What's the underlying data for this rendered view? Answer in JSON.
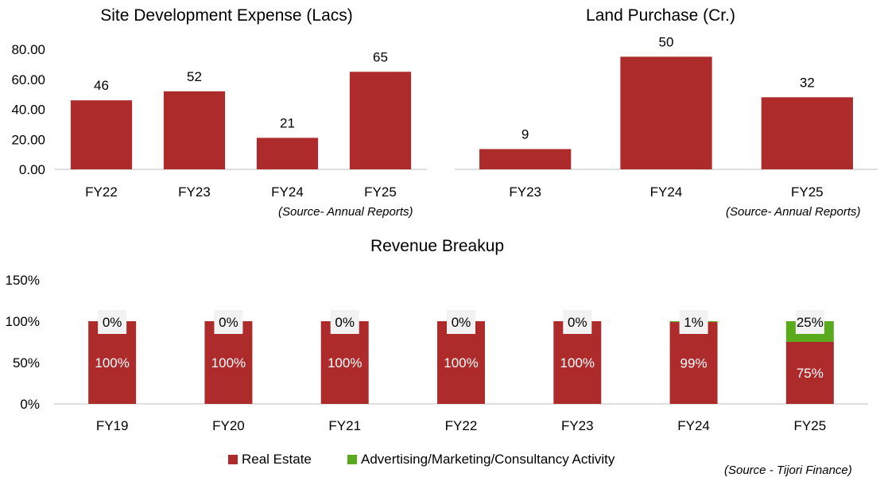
{
  "chart_data": [
    {
      "type": "bar",
      "title": "Site Development Expense (Lacs)",
      "categories": [
        "FY22",
        "FY23",
        "FY24",
        "FY25"
      ],
      "values": [
        46,
        52,
        21,
        65
      ],
      "data_labels": [
        "46",
        "52",
        "21",
        "65"
      ],
      "ylim": [
        0,
        80
      ],
      "yticks": [
        0,
        20,
        40,
        60,
        80
      ],
      "ytick_labels": [
        "0.00",
        "20.00",
        "40.00",
        "60.00",
        "80.00"
      ],
      "source": "(Source-  Annual Reports)",
      "color": "#ad2b2b",
      "grid": false
    },
    {
      "type": "bar",
      "title": "Land Purchase (Cr.)",
      "categories": [
        "FY23",
        "FY24",
        "FY25"
      ],
      "values": [
        9,
        50,
        32
      ],
      "data_labels": [
        "9",
        "50",
        "32"
      ],
      "y_axis_visible": false,
      "ylim": [
        0,
        60
      ],
      "source": "(Source-  Annual Reports)",
      "color": "#ad2b2b",
      "grid": false
    },
    {
      "type": "bar",
      "stacked": true,
      "title": "Revenue Breakup",
      "categories": [
        "FY19",
        "FY20",
        "FY21",
        "FY22",
        "FY23",
        "FY24",
        "FY25"
      ],
      "series": [
        {
          "name": "Real Estate",
          "values": [
            100,
            100,
            100,
            100,
            100,
            99,
            75
          ],
          "labels": [
            "100%",
            "100%",
            "100%",
            "100%",
            "100%",
            "99%",
            "75%"
          ],
          "color": "#ad2b2b"
        },
        {
          "name": "Advertising/Marketing/Consultancy Activity",
          "values": [
            0,
            0,
            0,
            0,
            0,
            1,
            25
          ],
          "labels": [
            "0%",
            "0%",
            "0%",
            "0%",
            "0%",
            "1%",
            "25%"
          ],
          "color": "#5aaa1e"
        }
      ],
      "ylim": [
        0,
        150
      ],
      "yticks": [
        0,
        50,
        100,
        150
      ],
      "ytick_labels": [
        "0%",
        "50%",
        "100%",
        "150%"
      ],
      "legend_position": "bottom",
      "source": "(Source  - Tijori Finance)",
      "grid": false
    }
  ]
}
